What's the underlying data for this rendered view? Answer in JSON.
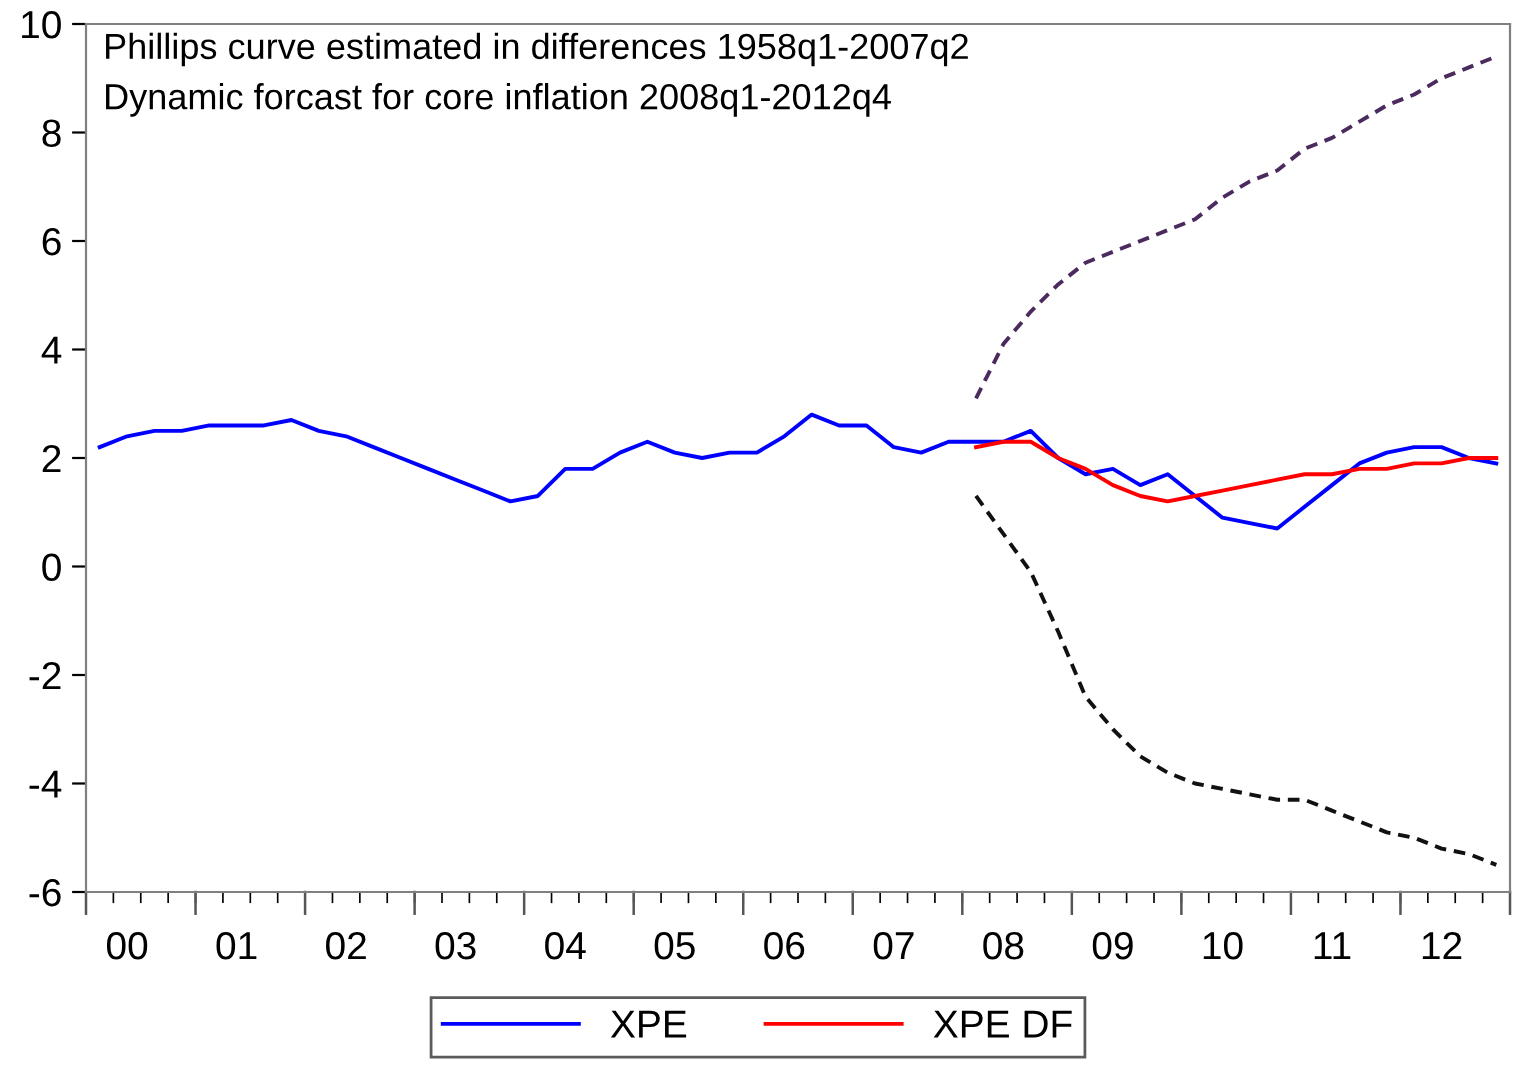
{
  "chart_data": {
    "type": "line",
    "annotations": [
      "Phillips curve estimated in differences 1958q1-2007q2",
      "Dynamic forcast for core inflation 2008q1-2012q4"
    ],
    "categories": [
      null,
      "00",
      null,
      null,
      null,
      "01",
      null,
      null,
      null,
      "02",
      null,
      null,
      null,
      "03",
      null,
      null,
      null,
      "04",
      null,
      null,
      null,
      "05",
      null,
      null,
      null,
      "06",
      null,
      null,
      null,
      "07",
      null,
      null,
      null,
      "08",
      null,
      null,
      null,
      "09",
      null,
      null,
      null,
      "10",
      null,
      null,
      null,
      "11",
      null,
      null,
      null,
      "12",
      null,
      null
    ],
    "series": [
      {
        "name": "XPE",
        "color": "#0000ff",
        "values": [
          2.2,
          2.4,
          2.5,
          2.5,
          2.6,
          2.6,
          2.6,
          2.7,
          2.5,
          2.4,
          2.2,
          2.0,
          1.8,
          1.6,
          1.4,
          1.2,
          1.3,
          1.8,
          1.8,
          2.1,
          2.3,
          2.1,
          2.0,
          2.1,
          2.1,
          2.4,
          2.8,
          2.6,
          2.6,
          2.2,
          2.1,
          2.3,
          2.3,
          2.3,
          2.5,
          2.0,
          1.7,
          1.8,
          1.5,
          1.7,
          1.3,
          0.9,
          0.8,
          0.7,
          1.1,
          1.5,
          1.9,
          2.1,
          2.2,
          2.2,
          2.0,
          1.9
        ]
      },
      {
        "name": "XPE DF",
        "color": "#ff0000",
        "values": [
          null,
          null,
          null,
          null,
          null,
          null,
          null,
          null,
          null,
          null,
          null,
          null,
          null,
          null,
          null,
          null,
          null,
          null,
          null,
          null,
          null,
          null,
          null,
          null,
          null,
          null,
          null,
          null,
          null,
          null,
          null,
          null,
          2.2,
          2.3,
          2.3,
          2.0,
          1.8,
          1.5,
          1.3,
          1.2,
          1.3,
          1.4,
          1.5,
          1.6,
          1.7,
          1.7,
          1.8,
          1.8,
          1.9,
          1.9,
          2.0,
          2.0
        ]
      },
      {
        "color": "#4b2a5e",
        "line_style": "dashed",
        "values": [
          null,
          null,
          null,
          null,
          null,
          null,
          null,
          null,
          null,
          null,
          null,
          null,
          null,
          null,
          null,
          null,
          null,
          null,
          null,
          null,
          null,
          null,
          null,
          null,
          null,
          null,
          null,
          null,
          null,
          null,
          null,
          null,
          3.1,
          4.1,
          4.7,
          5.2,
          5.6,
          5.8,
          6.0,
          6.2,
          6.4,
          6.8,
          7.1,
          7.3,
          7.7,
          7.9,
          8.2,
          8.5,
          8.7,
          9.0,
          9.2,
          9.4
        ]
      },
      {
        "color": "#111111",
        "line_style": "dashed",
        "values": [
          null,
          null,
          null,
          null,
          null,
          null,
          null,
          null,
          null,
          null,
          null,
          null,
          null,
          null,
          null,
          null,
          null,
          null,
          null,
          null,
          null,
          null,
          null,
          null,
          null,
          null,
          null,
          null,
          null,
          null,
          null,
          null,
          1.3,
          0.6,
          -0.1,
          -1.2,
          -2.4,
          -3.0,
          -3.5,
          -3.8,
          -4.0,
          -4.1,
          -4.2,
          -4.3,
          -4.3,
          -4.5,
          -4.7,
          -4.9,
          -5.0,
          -5.2,
          -5.3,
          -5.5
        ]
      }
    ],
    "ylim": [
      -6,
      10
    ],
    "yticks": [
      -6,
      -4,
      -2,
      0,
      2,
      4,
      6,
      8,
      10
    ],
    "grid": false,
    "legend": "bottom",
    "line_style": "solid"
  }
}
